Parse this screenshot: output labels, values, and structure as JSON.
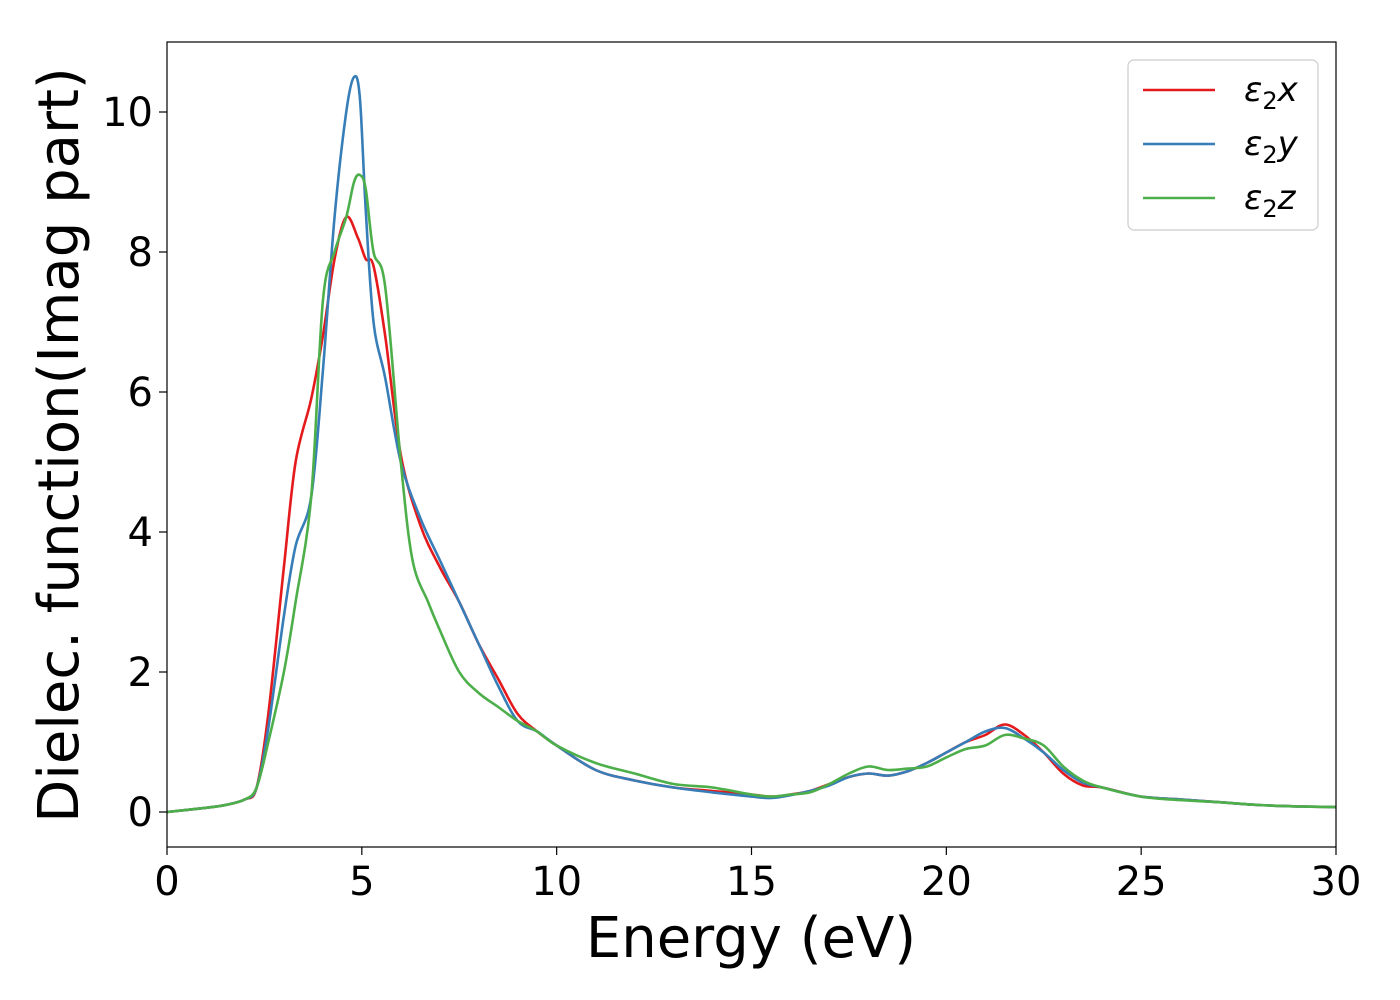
{
  "chart_data": {
    "type": "line",
    "xlabel": "Energy (eV)",
    "ylabel": "Dielec. function(Imag part)",
    "xlim": [
      0,
      30
    ],
    "ylim": [
      -0.5,
      11
    ],
    "xticks": [
      0,
      5,
      10,
      15,
      20,
      25,
      30
    ],
    "yticks": [
      0,
      2,
      4,
      6,
      8,
      10
    ],
    "grid": false,
    "legend_position": "top-right",
    "series": [
      {
        "name": "ε2x",
        "legend_base": "ε",
        "legend_sub": "2",
        "legend_suffix": "x",
        "color": "#e41a1c",
        "x": [
          0,
          1,
          1.5,
          2,
          2.3,
          2.6,
          3,
          3.3,
          3.7,
          4,
          4.3,
          4.6,
          4.9,
          5.1,
          5.3,
          5.6,
          6,
          6.5,
          7,
          7.5,
          8,
          8.5,
          9,
          9.5,
          10,
          11,
          12,
          13,
          14,
          15,
          15.5,
          16,
          16.5,
          17,
          17.5,
          18,
          18.5,
          19,
          19.5,
          20,
          20.5,
          21,
          21.5,
          22,
          22.5,
          23,
          23.5,
          24,
          25,
          26,
          27,
          28,
          29,
          30
        ],
        "y": [
          0,
          0.06,
          0.1,
          0.18,
          0.35,
          1.4,
          3.5,
          5.0,
          5.9,
          6.8,
          7.9,
          8.5,
          8.2,
          7.9,
          7.8,
          6.8,
          5.1,
          4.1,
          3.5,
          3.0,
          2.4,
          1.9,
          1.4,
          1.15,
          0.95,
          0.6,
          0.45,
          0.35,
          0.3,
          0.25,
          0.22,
          0.25,
          0.3,
          0.4,
          0.5,
          0.55,
          0.52,
          0.58,
          0.7,
          0.85,
          1.0,
          1.1,
          1.25,
          1.1,
          0.85,
          0.55,
          0.38,
          0.35,
          0.22,
          0.18,
          0.14,
          0.1,
          0.08,
          0.07
        ]
      },
      {
        "name": "ε2y",
        "legend_base": "ε",
        "legend_sub": "2",
        "legend_suffix": "y",
        "color": "#377eb8",
        "x": [
          0,
          1,
          1.5,
          2,
          2.3,
          2.6,
          3,
          3.3,
          3.7,
          4,
          4.3,
          4.6,
          4.8,
          4.95,
          5.1,
          5.3,
          5.6,
          6,
          6.5,
          7,
          7.5,
          8,
          8.5,
          9,
          9.5,
          10,
          11,
          12,
          13,
          14,
          15,
          15.5,
          16,
          16.5,
          17,
          17.5,
          18,
          18.5,
          19,
          19.5,
          20,
          20.5,
          21,
          21.5,
          22,
          22.5,
          23,
          23.5,
          24,
          25,
          26,
          27,
          28,
          29,
          30
        ],
        "y": [
          0,
          0.06,
          0.1,
          0.18,
          0.35,
          1.2,
          2.8,
          3.8,
          4.5,
          6.3,
          8.5,
          10.0,
          10.5,
          10.2,
          8.6,
          7.0,
          6.2,
          5.0,
          4.2,
          3.6,
          3.0,
          2.4,
          1.8,
          1.3,
          1.15,
          0.95,
          0.6,
          0.45,
          0.35,
          0.28,
          0.22,
          0.2,
          0.24,
          0.3,
          0.38,
          0.5,
          0.55,
          0.52,
          0.58,
          0.7,
          0.85,
          1.0,
          1.15,
          1.2,
          1.05,
          0.85,
          0.6,
          0.42,
          0.35,
          0.22,
          0.18,
          0.14,
          0.1,
          0.08,
          0.07
        ]
      },
      {
        "name": "ε2z",
        "legend_base": "ε",
        "legend_sub": "2",
        "legend_suffix": "z",
        "color": "#4daf4a",
        "x": [
          0,
          1,
          1.5,
          2,
          2.3,
          2.6,
          3,
          3.3,
          3.7,
          4,
          4.3,
          4.6,
          4.8,
          4.95,
          5.1,
          5.3,
          5.6,
          6,
          6.3,
          6.7,
          7,
          7.5,
          8,
          8.5,
          9,
          9.5,
          10,
          11,
          12,
          13,
          14,
          15,
          15.5,
          16,
          16.5,
          17,
          17.5,
          18,
          18.5,
          19,
          19.5,
          20,
          20.5,
          21,
          21.5,
          22,
          22.5,
          23,
          23.5,
          24,
          25,
          26,
          27,
          28,
          29,
          30
        ],
        "y": [
          0,
          0.06,
          0.1,
          0.18,
          0.35,
          1.0,
          2.0,
          3.0,
          4.5,
          7.3,
          8.0,
          8.5,
          9.0,
          9.1,
          8.9,
          8.0,
          7.5,
          5.0,
          3.6,
          3.0,
          2.6,
          2.0,
          1.7,
          1.5,
          1.3,
          1.15,
          0.95,
          0.7,
          0.55,
          0.4,
          0.35,
          0.25,
          0.22,
          0.25,
          0.28,
          0.4,
          0.55,
          0.65,
          0.6,
          0.62,
          0.65,
          0.78,
          0.9,
          0.95,
          1.1,
          1.05,
          0.95,
          0.65,
          0.45,
          0.35,
          0.22,
          0.17,
          0.14,
          0.1,
          0.08,
          0.07
        ]
      }
    ]
  }
}
